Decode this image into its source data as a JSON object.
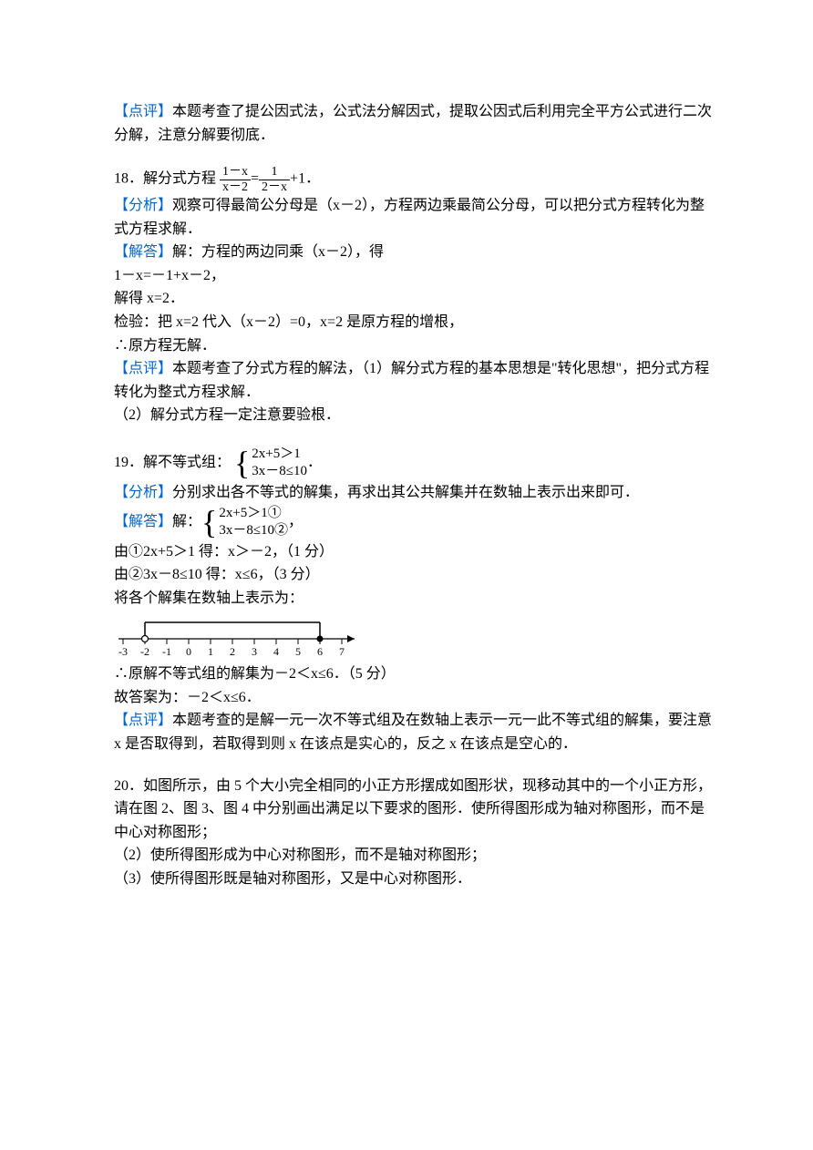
{
  "labels": {
    "dianping": "【点评】",
    "fenxi": "【分析】",
    "jieda": "【解答】"
  },
  "p17": {
    "comment": "本题考查了提公因式法，公式法分解因式，提取公因式后利用完全平方公式进行二次分解，注意分解要彻底．"
  },
  "p18": {
    "number": "18．解分式方程",
    "tail": "．",
    "eq_left_top": "1－x",
    "eq_left_bot": "x－2",
    "eq_mid": "=",
    "eq_right_top": "1",
    "eq_right_bot": "2－x",
    "eq_plus": "+1",
    "analysis": "观察可得最简公分母是（x－2），方程两边乘最简公分母，可以把分式方程转化为整式方程求解．",
    "solve1": "解：方程的两边同乘（x－2），得",
    "solve2": "1－x=－1+x－2，",
    "solve3": "解得 x=2．",
    "solve4": "检验：把 x=2 代入（x－2）=0，x=2 是原方程的增根，",
    "solve5": "∴原方程无解．",
    "comment1": "本题考查了分式方程的解法，（1）解分式方程的基本思想是\"转化思想\"，把分式方程转化为整式方程求解．",
    "comment2": "（2）解分式方程一定注意要验根．"
  },
  "p19": {
    "number": "19．解不等式组：",
    "sys_line1": "2x+5＞1",
    "sys_line2": "3x－8≤10",
    "sys_tail": "．",
    "sys2_line1": "2x+5＞1①",
    "sys2_line2": "3x－8≤10②",
    "sys2_tail": "，",
    "analysis": "分别求出各不等式的解集，再求出其公共解集并在数轴上表示出来即可．",
    "solve_prefix": "解：",
    "step1": "由①2x+5＞1 得：x＞－2，（1 分）",
    "step2": "由②3x－8≤10 得：x≤6，（3 分）",
    "step3": "将各个解集在数轴上表示为：",
    "result": "∴原解不等式组的解集为－2＜x≤6．（5 分）",
    "answer": "故答案为：－2＜x≤6．",
    "comment": "本题考查的是解一元一次不等式组及在数轴上表示一元一此不等式组的解集，要注意 x 是否取得到，若取得到则 x 在该点是实心的，反之 x 在该点是空心的．",
    "numberline": {
      "ticks": [
        "-3",
        "-2",
        "-1",
        "0",
        "1",
        "2",
        "3",
        "4",
        "5",
        "6",
        "7"
      ],
      "open_at": -2,
      "closed_at": 6,
      "color": "#000000"
    }
  },
  "p20": {
    "line1": "20．如图所示，由 5 个大小完全相同的小正方形摆成如图形状，现移动其中的一个小正方形，请在图 2、图 3、图 4 中分别画出满足以下要求的图形．使所得图形成为轴对称图形，而不是中心对称图形；",
    "line2": "（2）使所得图形成为中心对称图形，而不是轴对称图形；",
    "line3": "（3）使所得图形既是轴对称图形，又是中心对称图形．"
  }
}
